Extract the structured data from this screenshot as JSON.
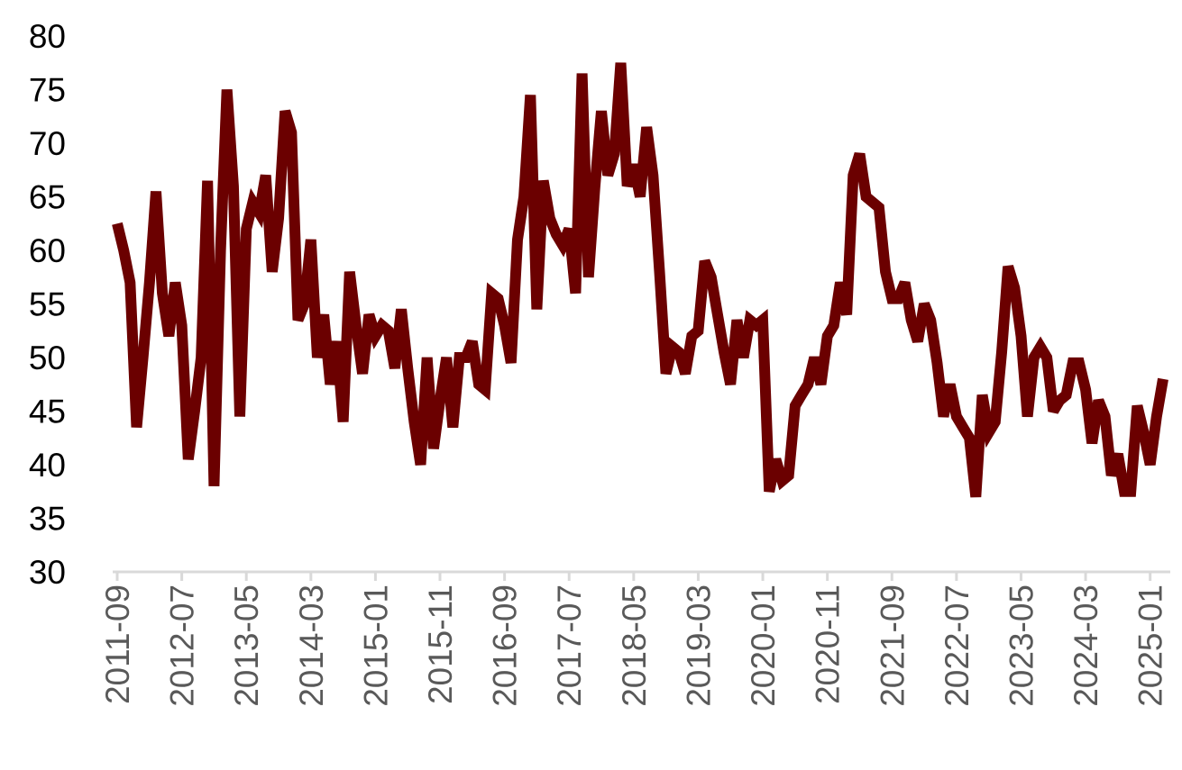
{
  "chart_data": {
    "type": "line",
    "categories": [
      "2011-09",
      null,
      null,
      null,
      null,
      null,
      null,
      null,
      null,
      null,
      "2012-07",
      null,
      null,
      null,
      null,
      null,
      null,
      null,
      null,
      null,
      "2013-05",
      null,
      null,
      null,
      null,
      null,
      null,
      null,
      null,
      null,
      "2014-03",
      null,
      null,
      null,
      null,
      null,
      null,
      null,
      null,
      null,
      "2015-01",
      null,
      null,
      null,
      null,
      null,
      null,
      null,
      null,
      null,
      "2015-11",
      null,
      null,
      null,
      null,
      null,
      null,
      null,
      null,
      null,
      "2016-09",
      null,
      null,
      null,
      null,
      null,
      null,
      null,
      null,
      null,
      "2017-07",
      null,
      null,
      null,
      null,
      null,
      null,
      null,
      null,
      null,
      "2018-05",
      null,
      null,
      null,
      null,
      null,
      null,
      null,
      null,
      null,
      "2019-03",
      null,
      null,
      null,
      null,
      null,
      null,
      null,
      null,
      null,
      "2020-01",
      null,
      null,
      null,
      null,
      null,
      null,
      null,
      null,
      null,
      "2020-11",
      null,
      null,
      null,
      null,
      null,
      null,
      null,
      null,
      null,
      "2021-09",
      null,
      null,
      null,
      null,
      null,
      null,
      null,
      null,
      null,
      "2022-07",
      null,
      null,
      null,
      null,
      null,
      null,
      null,
      null,
      null,
      "2023-05",
      null,
      null,
      null,
      null,
      null,
      null,
      null,
      null,
      null,
      "2024-03",
      null,
      null,
      null,
      null,
      null,
      null,
      null,
      null,
      null,
      "2025-01",
      null,
      null
    ],
    "series": [
      {
        "color": "#6b0000",
        "values": [
          62.5,
          60,
          57,
          43.5,
          50,
          57,
          65.5,
          56,
          52,
          57,
          53,
          40.5,
          45,
          50,
          66.5,
          38,
          60,
          75,
          66,
          44.5,
          62,
          64.5,
          63.5,
          67,
          58,
          63,
          73,
          71,
          53.5,
          55,
          61,
          50,
          54,
          47.5,
          51.5,
          44,
          58,
          53,
          48.5,
          54,
          52,
          53,
          52.5,
          49,
          54.5,
          49,
          44,
          40,
          50,
          41.5,
          46,
          50,
          43.5,
          50,
          50,
          51.5,
          47.5,
          47,
          56,
          55.5,
          53,
          49.5,
          61,
          65,
          74.5,
          54.5,
          66.5,
          63,
          61.5,
          60.5,
          62,
          56,
          76.5,
          57.5,
          66,
          73,
          67,
          69,
          77.5,
          66,
          68,
          65,
          71.5,
          67,
          58,
          48.5,
          51,
          50.5,
          48.5,
          52,
          52.5,
          59,
          57.5,
          54,
          50.5,
          47.5,
          53.5,
          50,
          53.5,
          53,
          53.5,
          37.5,
          40.5,
          38.5,
          39,
          45.5,
          46.5,
          47.5,
          50,
          47.5,
          52,
          53,
          57,
          54,
          67,
          69,
          65,
          64.5,
          64,
          58,
          55.5,
          55.5,
          57,
          53.5,
          51.5,
          55,
          53.5,
          49.5,
          44.5,
          47.5,
          44.5,
          43.5,
          42.5,
          37,
          46.5,
          43,
          44,
          50.5,
          58.5,
          56.5,
          52,
          44.5,
          50,
          51,
          50,
          45,
          46,
          46.5,
          49.5,
          49.5,
          47,
          42,
          46,
          44.5,
          39,
          41,
          37.5,
          37.5,
          45.5,
          43,
          40,
          44.5,
          48
        ]
      }
    ],
    "ylim": [
      30,
      80
    ],
    "yticks": [
      30,
      35,
      40,
      45,
      50,
      55,
      60,
      65,
      70,
      75,
      80
    ],
    "grid": false
  }
}
